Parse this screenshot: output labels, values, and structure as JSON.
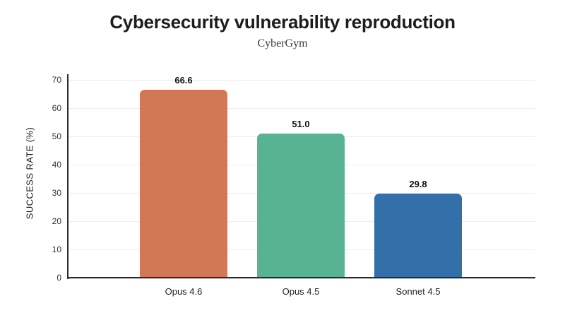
{
  "chart_data": {
    "type": "bar",
    "title": "Cybersecurity vulnerability reproduction",
    "subtitle": "CyberGym",
    "xlabel": "",
    "ylabel": "SUCCESS RATE (%)",
    "categories": [
      "Opus 4.6",
      "Opus 4.5",
      "Sonnet 4.5"
    ],
    "values": [
      66.6,
      51.0,
      29.8
    ],
    "value_labels": [
      "66.6",
      "51.0",
      "29.8"
    ],
    "bar_colors": [
      "#D27855",
      "#57B391",
      "#336FA8"
    ],
    "ylim": [
      0,
      70
    ],
    "yticks": [
      0,
      10,
      20,
      30,
      40,
      50,
      60,
      70
    ],
    "grid": "horizontal-only",
    "legend": "none",
    "colors": {
      "background": "#ffffff",
      "axis_line": "#2b2b2b",
      "gridline": "#ededed",
      "tick_label": "#333333",
      "title": "#1d1d1d",
      "subtitle": "#3a3a3a",
      "value_label": "#111111"
    }
  }
}
